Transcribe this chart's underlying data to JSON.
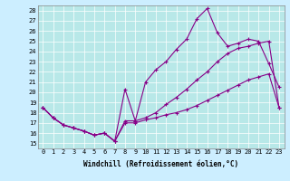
{
  "line1_x": [
    0,
    1,
    2,
    3,
    4,
    5,
    6,
    7,
    8,
    9,
    10,
    11,
    12,
    13,
    14,
    15,
    16,
    17,
    18,
    19,
    20,
    21,
    22,
    23
  ],
  "line1_y": [
    18.5,
    17.5,
    16.8,
    16.5,
    16.2,
    15.8,
    16.0,
    15.2,
    20.3,
    17.2,
    21.0,
    22.2,
    23.0,
    24.2,
    25.2,
    27.2,
    28.2,
    25.8,
    24.5,
    24.8,
    25.2,
    25.0,
    22.8,
    20.5
  ],
  "line2_x": [
    0,
    1,
    2,
    3,
    4,
    5,
    6,
    7,
    8,
    9,
    10,
    11,
    12,
    13,
    14,
    15,
    16,
    17,
    18,
    19,
    20,
    21,
    22,
    23
  ],
  "line2_y": [
    18.5,
    17.5,
    16.8,
    16.5,
    16.2,
    15.8,
    16.0,
    15.2,
    17.2,
    17.2,
    17.5,
    18.0,
    18.8,
    19.5,
    20.3,
    21.2,
    22.0,
    23.0,
    23.8,
    24.3,
    24.5,
    24.8,
    25.0,
    18.5
  ],
  "line3_x": [
    0,
    1,
    2,
    3,
    4,
    5,
    6,
    7,
    8,
    9,
    10,
    11,
    12,
    13,
    14,
    15,
    16,
    17,
    18,
    19,
    20,
    21,
    22,
    23
  ],
  "line3_y": [
    18.5,
    17.5,
    16.8,
    16.5,
    16.2,
    15.8,
    16.0,
    15.2,
    17.0,
    17.0,
    17.3,
    17.5,
    17.8,
    18.0,
    18.3,
    18.7,
    19.2,
    19.7,
    20.2,
    20.7,
    21.2,
    21.5,
    21.8,
    18.5
  ],
  "line_color": "#880088",
  "bg_color": "#cceeff",
  "plot_bg_color": "#b8e8e8",
  "xlabel": "Windchill (Refroidissement éolien,°C)",
  "xlim": [
    -0.5,
    23.5
  ],
  "ylim": [
    14.5,
    28.5
  ],
  "xticks": [
    0,
    1,
    2,
    3,
    4,
    5,
    6,
    7,
    8,
    9,
    10,
    11,
    12,
    13,
    14,
    15,
    16,
    17,
    18,
    19,
    20,
    21,
    22,
    23
  ],
  "yticks": [
    15,
    16,
    17,
    18,
    19,
    20,
    21,
    22,
    23,
    24,
    25,
    26,
    27,
    28
  ],
  "axis_fontsize": 5.5,
  "tick_fontsize": 5.0
}
